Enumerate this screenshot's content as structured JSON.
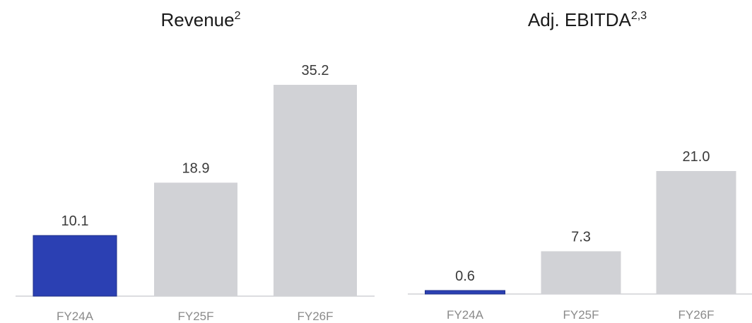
{
  "colors": {
    "actual": "#2b40b3",
    "forecast": "#d1d2d6",
    "axis": "#d1d2d6"
  },
  "chart_data": [
    {
      "type": "bar",
      "title": "Revenue",
      "title_superscript": "2",
      "categories": [
        "FY24A",
        "FY25F",
        "FY26F"
      ],
      "values": [
        10.1,
        18.9,
        35.2
      ],
      "value_labels": [
        "10.1",
        "18.9",
        "35.2"
      ],
      "highlight": [
        "actual",
        "forecast",
        "forecast"
      ],
      "ylim": [
        0,
        35.2
      ],
      "grid": false,
      "legend": "none"
    },
    {
      "type": "bar",
      "title": "Adj. EBITDA",
      "title_superscript": "2,3",
      "categories": [
        "FY24A",
        "FY25F",
        "FY26F"
      ],
      "values": [
        0.6,
        7.3,
        21.0
      ],
      "value_labels": [
        "0.6",
        "7.3",
        "21.0"
      ],
      "highlight": [
        "actual",
        "forecast",
        "forecast"
      ],
      "ylim": [
        0,
        21.0
      ],
      "grid": false,
      "legend": "none"
    }
  ]
}
